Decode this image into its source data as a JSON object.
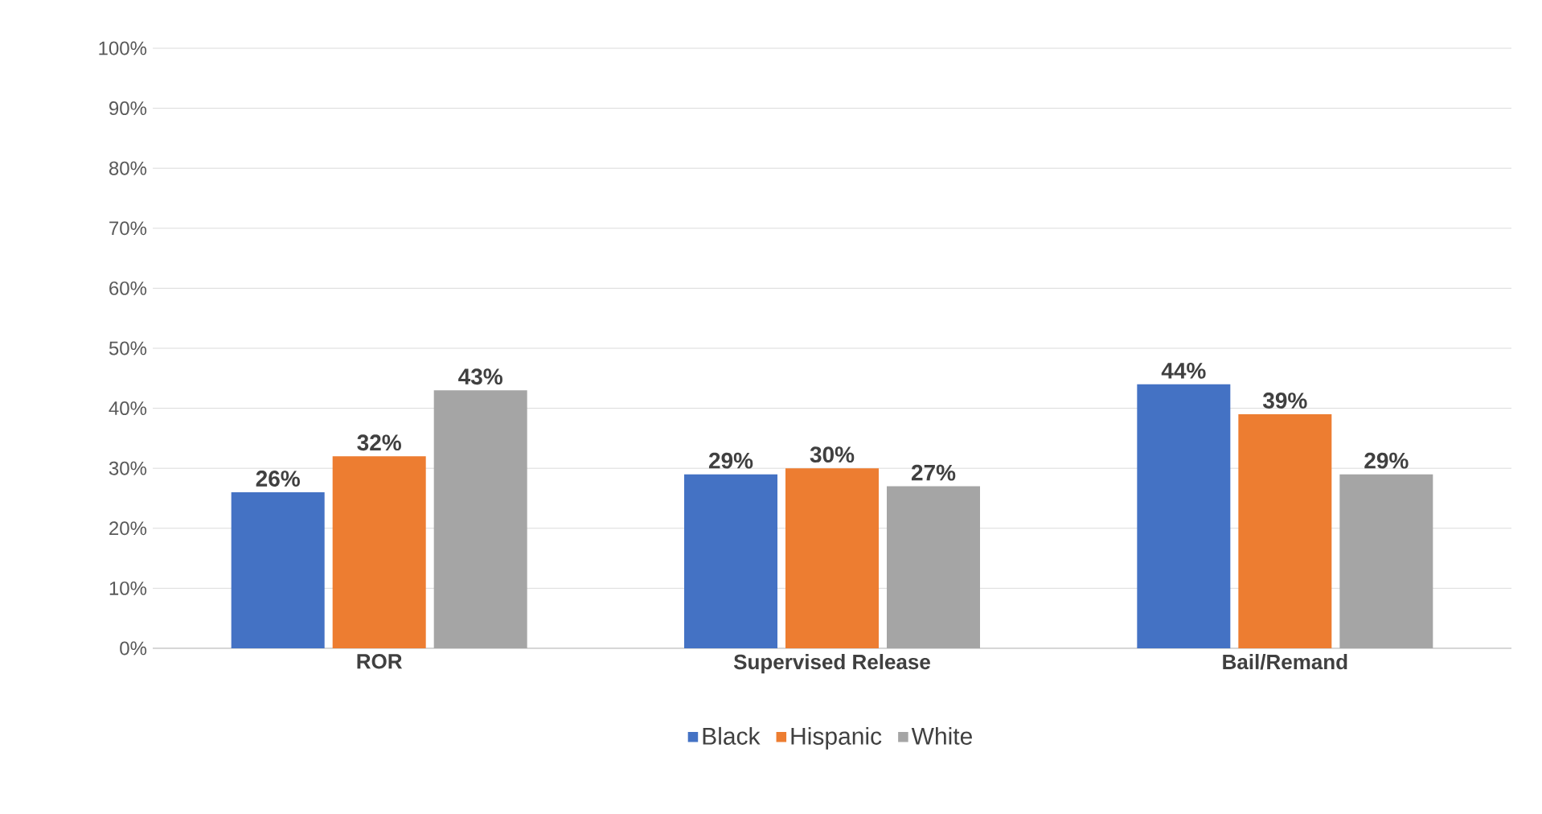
{
  "chart_data": {
    "type": "bar",
    "categories": [
      "ROR",
      "Supervised Release",
      "Bail/Remand"
    ],
    "series": [
      {
        "name": "Black",
        "color": "#4472c4",
        "values": [
          26,
          29,
          44
        ],
        "value_labels": [
          "26%",
          "29%",
          "44%"
        ]
      },
      {
        "name": "Hispanic",
        "color": "#ed7d31",
        "values": [
          32,
          30,
          39
        ],
        "value_labels": [
          "32%",
          "30%",
          "39%"
        ]
      },
      {
        "name": "White",
        "color": "#a5a5a5",
        "values": [
          43,
          27,
          29
        ],
        "value_labels": [
          "43%",
          "27%",
          "29%"
        ]
      }
    ],
    "ylim": [
      0,
      100
    ],
    "yticks": [
      {
        "value": 0,
        "label": "0%"
      },
      {
        "value": 10,
        "label": "10%"
      },
      {
        "value": 20,
        "label": "20%"
      },
      {
        "value": 30,
        "label": "30%"
      },
      {
        "value": 40,
        "label": "40%"
      },
      {
        "value": 50,
        "label": "50%"
      },
      {
        "value": 60,
        "label": "60%"
      },
      {
        "value": 70,
        "label": "70%"
      },
      {
        "value": 80,
        "label": "80%"
      },
      {
        "value": 90,
        "label": "90%"
      },
      {
        "value": 100,
        "label": "100%"
      }
    ],
    "grid": "y",
    "legend": "bottom"
  }
}
